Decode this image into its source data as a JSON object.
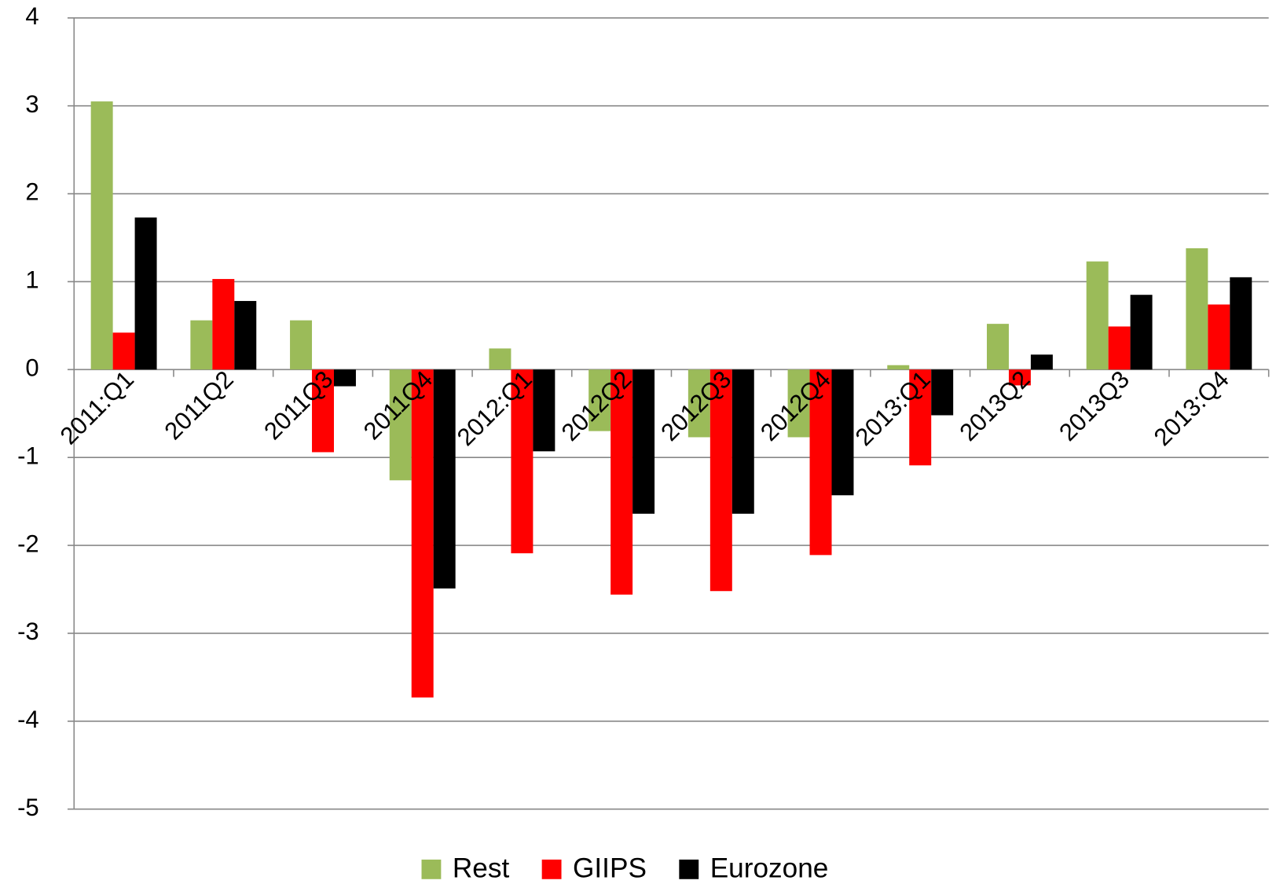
{
  "chart_data": {
    "type": "bar",
    "categories": [
      "2011:Q1",
      "2011Q2",
      "2011Q3",
      "2011Q4",
      "2012:Q1",
      "2012Q2",
      "2012Q3",
      "2012Q4",
      "2013:Q1",
      "2013Q2",
      "2013Q3",
      "2013:Q4"
    ],
    "series": [
      {
        "name": "Rest",
        "color": "#9bbb59",
        "values": [
          3.05,
          0.56,
          0.56,
          -1.26,
          0.24,
          -0.7,
          -0.77,
          -0.77,
          0.05,
          0.52,
          1.23,
          1.38
        ]
      },
      {
        "name": "GIIPS",
        "color": "#ff0000",
        "values": [
          0.42,
          1.03,
          -0.94,
          -3.73,
          -2.09,
          -2.56,
          -2.52,
          -2.11,
          -1.09,
          -0.18,
          0.49,
          0.74
        ]
      },
      {
        "name": "Eurozone",
        "color": "#000000",
        "values": [
          1.73,
          0.78,
          -0.19,
          -2.49,
          -0.93,
          -1.64,
          -1.64,
          -1.43,
          -0.52,
          0.17,
          0.85,
          1.05
        ]
      }
    ],
    "ylim": [
      -5,
      4
    ],
    "yticks": [
      -5,
      -4,
      -3,
      -2,
      -1,
      0,
      1,
      2,
      3,
      4
    ],
    "grid": true,
    "legend": "bottom"
  }
}
